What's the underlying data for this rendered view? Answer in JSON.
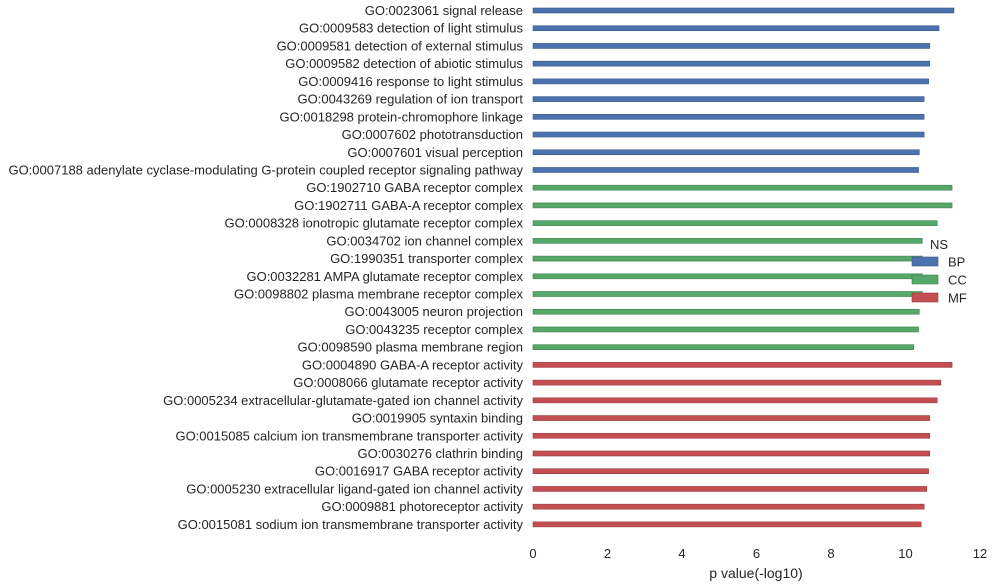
{
  "chart_data": {
    "type": "bar",
    "orientation": "horizontal",
    "xlabel": "p value(-log10)",
    "xlim": [
      0,
      12
    ],
    "xticks": [
      0,
      2,
      4,
      6,
      8,
      10,
      12
    ],
    "grid": false,
    "legend": {
      "title": "NS",
      "placement": "right",
      "entries": [
        {
          "name": "BP",
          "color": "#4c72b0"
        },
        {
          "name": "CC",
          "color": "#55a868"
        },
        {
          "name": "MF",
          "color": "#c44e52"
        }
      ]
    },
    "categories": [
      {
        "label": "GO:0023061 signal release",
        "value": 11.3,
        "group": "BP"
      },
      {
        "label": "GO:0009583 detection of light stimulus",
        "value": 10.9,
        "group": "BP"
      },
      {
        "label": "GO:0009581 detection of external stimulus",
        "value": 10.65,
        "group": "BP"
      },
      {
        "label": "GO:0009582 detection of abiotic stimulus",
        "value": 10.65,
        "group": "BP"
      },
      {
        "label": "GO:0009416 response to light stimulus",
        "value": 10.62,
        "group": "BP"
      },
      {
        "label": "GO:0043269 regulation of ion transport",
        "value": 10.5,
        "group": "BP"
      },
      {
        "label": "GO:0018298 protein-chromophore linkage",
        "value": 10.5,
        "group": "BP"
      },
      {
        "label": "GO:0007602 phototransduction",
        "value": 10.5,
        "group": "BP"
      },
      {
        "label": "GO:0007601 visual perception",
        "value": 10.37,
        "group": "BP"
      },
      {
        "label": "GO:0007188 adenylate cyclase-modulating G-protein coupled receptor signaling pathway",
        "value": 10.35,
        "group": "BP"
      },
      {
        "label": "GO:1902710 GABA receptor complex",
        "value": 11.25,
        "group": "CC"
      },
      {
        "label": "GO:1902711 GABA-A receptor complex",
        "value": 11.25,
        "group": "CC"
      },
      {
        "label": "GO:0008328 ionotropic glutamate receptor complex",
        "value": 10.85,
        "group": "CC"
      },
      {
        "label": "GO:0034702 ion channel complex",
        "value": 10.45,
        "group": "CC"
      },
      {
        "label": "GO:1990351 transporter complex",
        "value": 10.45,
        "group": "CC"
      },
      {
        "label": "GO:0032281 AMPA glutamate receptor complex",
        "value": 10.45,
        "group": "CC"
      },
      {
        "label": "GO:0098802 plasma membrane receptor complex",
        "value": 10.45,
        "group": "CC"
      },
      {
        "label": "GO:0043005 neuron projection",
        "value": 10.37,
        "group": "CC"
      },
      {
        "label": "GO:0043235 receptor complex",
        "value": 10.35,
        "group": "CC"
      },
      {
        "label": "GO:0098590 plasma membrane region",
        "value": 10.22,
        "group": "CC"
      },
      {
        "label": "GO:0004890 GABA-A receptor activity",
        "value": 11.25,
        "group": "MF"
      },
      {
        "label": "GO:0008066 glutamate receptor activity",
        "value": 10.95,
        "group": "MF"
      },
      {
        "label": "GO:0005234 extracellular-glutamate-gated ion channel activity",
        "value": 10.85,
        "group": "MF"
      },
      {
        "label": "GO:0019905 syntaxin binding",
        "value": 10.65,
        "group": "MF"
      },
      {
        "label": "GO:0015085 calcium ion transmembrane transporter activity",
        "value": 10.65,
        "group": "MF"
      },
      {
        "label": "GO:0030276 clathrin binding",
        "value": 10.65,
        "group": "MF"
      },
      {
        "label": "GO:0016917 GABA receptor activity",
        "value": 10.62,
        "group": "MF"
      },
      {
        "label": "GO:0005230 extracellular ligand-gated ion channel activity",
        "value": 10.57,
        "group": "MF"
      },
      {
        "label": "GO:0009881 photoreceptor activity",
        "value": 10.5,
        "group": "MF"
      },
      {
        "label": "GO:0015081 sodium ion transmembrane transporter activity",
        "value": 10.42,
        "group": "MF"
      }
    ]
  }
}
